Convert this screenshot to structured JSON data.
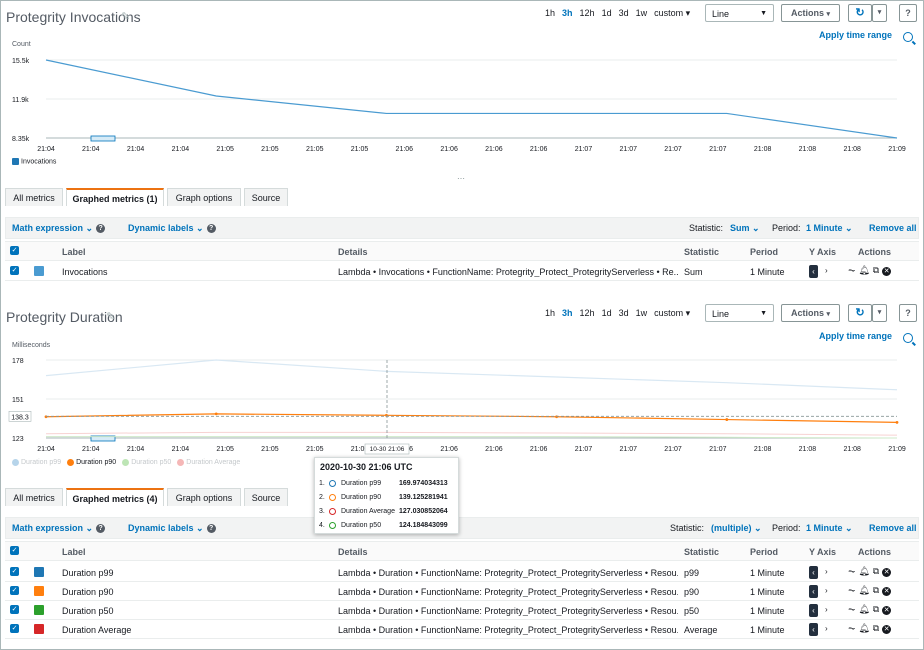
{
  "range_options": [
    "1h",
    "3h",
    "12h",
    "1d",
    "3d",
    "1w",
    "custom ▾"
  ],
  "range_selected": "3h",
  "chart_type_select": "Line",
  "actions_label": "Actions",
  "apply_time_range": "Apply time range",
  "tabs": {
    "all": "All metrics",
    "graph_options": "Graph options",
    "source": "Source"
  },
  "toolbar": {
    "math_expression": "Math expression",
    "dynamic_labels": "Dynamic labels",
    "statistic_label": "Statistic:",
    "period_label": "Period:",
    "period_value": "1 Minute",
    "remove_all": "Remove all"
  },
  "table_headers": {
    "label": "Label",
    "details": "Details",
    "statistic": "Statistic",
    "period": "Period",
    "y_axis": "Y Axis",
    "actions": "Actions"
  },
  "colors": {
    "p99": "#1f77b4",
    "p90": "#ff7f0e",
    "p50": "#2ca02c",
    "average": "#d62728",
    "accent": "#0073bb"
  },
  "panel1": {
    "title": "Protegrity Invocations",
    "graphed_metrics_tab": "Graphed metrics (1)",
    "statistic_value": "Sum",
    "rows": [
      {
        "label": "Invocations",
        "details": "Lambda • Invocations • FunctionName: Protegrity_Protect_ProtegrityServerless • Re...",
        "statistic": "Sum",
        "period": "1 Minute"
      }
    ]
  },
  "panel2": {
    "title": "Protegrity Duration",
    "graphed_metrics_tab": "Graphed metrics (4)",
    "statistic_value": "(multiple)",
    "rows": [
      {
        "label": "Duration p99",
        "details": "Lambda • Duration • FunctionName: Protegrity_Protect_ProtegrityServerless • Resou...",
        "statistic": "p99",
        "period": "1 Minute"
      },
      {
        "label": "Duration p90",
        "details": "Lambda • Duration • FunctionName: Protegrity_Protect_ProtegrityServerless • Resou...",
        "statistic": "p90",
        "period": "1 Minute"
      },
      {
        "label": "Duration p50",
        "details": "Lambda • Duration • FunctionName: Protegrity_Protect_ProtegrityServerless • Resou...",
        "statistic": "p50",
        "period": "1 Minute"
      },
      {
        "label": "Duration Average",
        "details": "Lambda • Duration • FunctionName: Protegrity_Protect_ProtegrityServerless • Resou...",
        "statistic": "Average",
        "period": "1 Minute"
      }
    ],
    "tooltip": {
      "title": "2020-10-30 21:06 UTC",
      "rows": [
        {
          "n": "1.",
          "name": "Duration p99",
          "value": "169.974034313"
        },
        {
          "n": "2.",
          "name": "Duration p90",
          "value": "139.125281941"
        },
        {
          "n": "3.",
          "name": "Duration Average",
          "value": "127.030852064"
        },
        {
          "n": "4.",
          "name": "Duration p50",
          "value": "124.184843099"
        }
      ]
    },
    "crosshair_label": "10-30 21:06",
    "threshold_label": "138.3"
  },
  "chart_data": [
    {
      "type": "line",
      "ylabel": "Count",
      "y_ticks": [
        "15.5k",
        "11.9k",
        "8.35k"
      ],
      "ylim": [
        8350,
        15500
      ],
      "x_ticks": [
        "21:04",
        "21:04",
        "21:04",
        "21:04",
        "21:05",
        "21:05",
        "21:05",
        "21:05",
        "21:06",
        "21:06",
        "21:06",
        "21:06",
        "21:07",
        "21:07",
        "21:07",
        "21:07",
        "21:08",
        "21:08",
        "21:08",
        "21:09"
      ],
      "series": [
        {
          "name": "Invocations",
          "color": "#4a9bd1",
          "x": [
            "21:04",
            "21:05",
            "21:06",
            "21:07",
            "21:08",
            "21:09"
          ],
          "values": [
            15500,
            12200,
            10600,
            10600,
            10600,
            8350
          ]
        }
      ]
    },
    {
      "type": "line",
      "ylabel": "Milliseconds",
      "y_ticks": [
        "178",
        "151",
        "123"
      ],
      "ylim": [
        123,
        178
      ],
      "x_ticks": [
        "21:04",
        "21:04",
        "21:04",
        "21:04",
        "21:05",
        "21:05",
        "21:05",
        "21:05",
        "21:06",
        "21:06",
        "21:06",
        "21:06",
        "21:07",
        "21:07",
        "21:07",
        "21:07",
        "21:08",
        "21:08",
        "21:08",
        "21:09"
      ],
      "series": [
        {
          "name": "Duration p99",
          "color": "#1f77b4",
          "x": [
            "21:04",
            "21:05",
            "21:06",
            "21:07",
            "21:08",
            "21:09"
          ],
          "values": [
            167,
            178,
            170,
            166,
            162,
            157
          ]
        },
        {
          "name": "Duration p90",
          "color": "#ff7f0e",
          "x": [
            "21:04",
            "21:05",
            "21:06",
            "21:07",
            "21:08",
            "21:09"
          ],
          "values": [
            138,
            140,
            139,
            138,
            136,
            134
          ]
        },
        {
          "name": "Duration p50",
          "color": "#2ca02c",
          "x": [
            "21:04",
            "21:05",
            "21:06",
            "21:07",
            "21:08",
            "21:09"
          ],
          "values": [
            124,
            124,
            124,
            124,
            123.5,
            123
          ]
        },
        {
          "name": "Duration Average",
          "color": "#d62728",
          "x": [
            "21:04",
            "21:05",
            "21:06",
            "21:07",
            "21:08",
            "21:09"
          ],
          "values": [
            126,
            127,
            127,
            126.5,
            126,
            125
          ]
        }
      ]
    }
  ]
}
